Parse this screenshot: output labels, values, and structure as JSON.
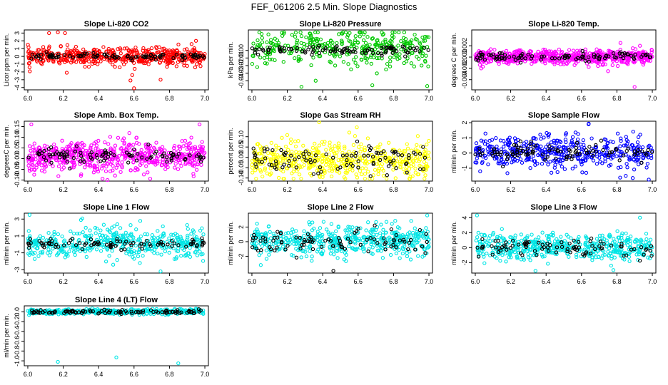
{
  "page_title": "FEF_061206  2.5 Min. Slope Diagnostics",
  "chart_data": [
    {
      "type": "scatter",
      "title": "Slope Li-820 CO2",
      "ylabel": "Licor ppm per min.",
      "xlim": [
        5.98,
        7.02
      ],
      "ylim": [
        -4.3,
        3.4
      ],
      "xticks": [
        "6.0",
        "6.2",
        "6.4",
        "6.6",
        "6.8",
        "7.0"
      ],
      "yticks": [
        -4,
        -3,
        -2,
        -1,
        0,
        1,
        2,
        3
      ],
      "ytick_labels": [
        "-4",
        "-3",
        "-2",
        "-1",
        "0",
        "1",
        "2",
        "3"
      ],
      "series": [
        {
          "color": "#ff0000",
          "n": 500,
          "center": 0.0,
          "spread": 0.55,
          "outliers": [
            [
              6.12,
              3.0
            ],
            [
              6.17,
              3.1
            ],
            [
              6.21,
              3.0
            ],
            [
              6.6,
              -4.1
            ],
            [
              6.58,
              -3.1
            ],
            [
              6.59,
              -2.4
            ],
            [
              6.01,
              -1.4
            ],
            [
              6.22,
              -2.1
            ],
            [
              6.75,
              -3.0
            ],
            [
              6.95,
              2.0
            ]
          ]
        },
        {
          "color": "#000000",
          "n": 100,
          "center": 0.0,
          "spread": 0.18
        }
      ]
    },
    {
      "type": "scatter",
      "title": "Slope Li-820 Pressure",
      "ylabel": "kPa per min.",
      "xlim": [
        5.98,
        7.02
      ],
      "ylim": [
        -0.052,
        0.027
      ],
      "xticks": [
        "6.0",
        "6.2",
        "6.4",
        "6.6",
        "6.8",
        "7.0"
      ],
      "yticks": [
        0.0,
        -0.01,
        -0.02,
        -0.03,
        -0.04
      ],
      "ytick_labels": [
        "0.00",
        "-0.01",
        "-0.02",
        "-0.03",
        "-0.04"
      ],
      "series": [
        {
          "color": "#00c800",
          "n": 350,
          "center": 0.004,
          "spread": 0.012,
          "outliers": [
            [
              6.28,
              -0.048
            ],
            [
              6.68,
              -0.046
            ],
            [
              6.99,
              -0.047
            ],
            [
              6.36,
              -0.04
            ],
            [
              6.56,
              -0.025
            ],
            [
              6.03,
              -0.022
            ]
          ]
        },
        {
          "color": "#000000",
          "n": 100,
          "center": 0.0,
          "spread": 0.003
        }
      ]
    },
    {
      "type": "scatter",
      "title": "Slope Li-820 Temp.",
      "ylabel": "degrees C per min.",
      "xlim": [
        5.98,
        7.02
      ],
      "ylim": [
        -0.0058,
        0.0048
      ],
      "xticks": [
        "6.0",
        "6.2",
        "6.4",
        "6.6",
        "6.8",
        "7.0"
      ],
      "yticks": [
        0.002,
        0.0,
        -0.002,
        -0.004
      ],
      "ytick_labels": [
        "0.002",
        "0.000",
        "-0.002",
        "-0.004"
      ],
      "series": [
        {
          "color": "#ff00ff",
          "n": 600,
          "center": 0.0,
          "spread": 0.0006,
          "outliers": [
            [
              6.9,
              -0.0053
            ],
            [
              6.82,
              0.0025
            ],
            [
              6.93,
              0.002
            ],
            [
              6.75,
              -0.0025
            ]
          ]
        },
        {
          "color": "#000000",
          "n": 100,
          "center": 0.0,
          "spread": 0.0004
        }
      ]
    },
    {
      "type": "scatter",
      "title": "Slope Amb. Box Temp.",
      "ylabel": "degreesC per min.",
      "xlim": [
        5.98,
        7.02
      ],
      "ylim": [
        -0.105,
        0.175
      ],
      "xticks": [
        "6.0",
        "6.2",
        "6.4",
        "6.6",
        "6.8",
        "7.0"
      ],
      "yticks": [
        0.15,
        0.1,
        0.05,
        0.0,
        -0.05,
        -0.1
      ],
      "ytick_labels": [
        "0.15",
        "0.10",
        "0.05",
        "0.00",
        "-0.05",
        "-0.10"
      ],
      "series": [
        {
          "color": "#ff00ff",
          "n": 600,
          "center": 0.01,
          "spread": 0.035,
          "outliers": [
            [
              6.02,
              0.16
            ],
            [
              6.97,
              0.16
            ],
            [
              6.45,
              -0.1
            ],
            [
              6.3,
              -0.08
            ]
          ]
        },
        {
          "color": "#000000",
          "n": 100,
          "center": 0.015,
          "spread": 0.018
        }
      ]
    },
    {
      "type": "scatter",
      "title": "Slope Gas Stream RH",
      "ylabel": "percent per min.",
      "xlim": [
        5.98,
        7.02
      ],
      "ylim": [
        -0.115,
        0.175
      ],
      "xticks": [
        "6.0",
        "6.2",
        "6.4",
        "6.6",
        "6.8",
        "7.0"
      ],
      "yticks": [
        0.1,
        0.05,
        0.0,
        -0.05,
        -0.1
      ],
      "ytick_labels": [
        "0.10",
        "0.05",
        "0.00",
        "-0.05",
        "-0.10"
      ],
      "series": [
        {
          "color": "#ffff00",
          "n": 500,
          "center": -0.015,
          "spread": 0.045,
          "outliers": [
            [
              6.38,
              0.17
            ],
            [
              6.55,
              0.12
            ]
          ]
        },
        {
          "color": "#000000",
          "n": 100,
          "center": -0.01,
          "spread": 0.035
        }
      ]
    },
    {
      "type": "scatter",
      "title": "Slope Sample Flow",
      "ylabel": "ml/min per min.",
      "xlim": [
        5.98,
        7.02
      ],
      "ylim": [
        -1.85,
        2.1
      ],
      "xticks": [
        "6.0",
        "6.2",
        "6.4",
        "6.6",
        "6.8",
        "7.0"
      ],
      "yticks": [
        2,
        1,
        0,
        -1
      ],
      "ytick_labels": [
        "2",
        "1",
        "0",
        "-1"
      ],
      "series": [
        {
          "color": "#0000ff",
          "n": 450,
          "center": 0.05,
          "spread": 0.55,
          "outliers": [
            [
              6.64,
              1.9
            ],
            [
              6.98,
              -1.75
            ],
            [
              6.43,
              -1.3
            ],
            [
              6.85,
              -1.5
            ]
          ]
        },
        {
          "color": "#000000",
          "n": 100,
          "center": 0.05,
          "spread": 0.3
        }
      ]
    },
    {
      "type": "scatter",
      "title": "Slope Line 1 Flow",
      "ylabel": "ml/min per min.",
      "xlim": [
        5.98,
        7.02
      ],
      "ylim": [
        -3.4,
        3.7
      ],
      "xticks": [
        "6.0",
        "6.2",
        "6.4",
        "6.6",
        "6.8",
        "7.0"
      ],
      "yticks": [
        3,
        1,
        -1,
        -3
      ],
      "ytick_labels": [
        "3",
        "1",
        "-1",
        "-3"
      ],
      "series": [
        {
          "color": "#00e5e5",
          "n": 450,
          "center": 0.1,
          "spread": 0.9,
          "outliers": [
            [
              6.01,
              3.5
            ],
            [
              6.3,
              2.9
            ],
            [
              6.75,
              -3.2
            ],
            [
              6.9,
              2.3
            ]
          ]
        },
        {
          "color": "#000000",
          "n": 90,
          "center": 0.05,
          "spread": 0.3
        }
      ]
    },
    {
      "type": "scatter",
      "title": "Slope Line 2 Flow",
      "ylabel": "ml/min per min.",
      "xlim": [
        5.98,
        7.02
      ],
      "ylim": [
        -4.3,
        3.9
      ],
      "xticks": [
        "6.0",
        "6.2",
        "6.4",
        "6.6",
        "6.8",
        "7.0"
      ],
      "yticks": [
        2,
        0,
        -2
      ],
      "ytick_labels": [
        "2",
        "0",
        "-2"
      ],
      "series": [
        {
          "color": "#00e5e5",
          "n": 500,
          "center": 0.1,
          "spread": 1.0,
          "outliers": [
            [
              6.99,
              3.6
            ],
            [
              6.05,
              -3.2
            ]
          ]
        },
        {
          "color": "#000000",
          "n": 90,
          "center": 0.0,
          "spread": 0.9,
          "outliers": [
            [
              6.46,
              -4.0
            ]
          ]
        }
      ]
    },
    {
      "type": "scatter",
      "title": "Slope Line 3 Flow",
      "ylabel": "ml/min per min.",
      "xlim": [
        5.98,
        7.02
      ],
      "ylim": [
        -3.4,
        4.6
      ],
      "xticks": [
        "6.0",
        "6.2",
        "6.4",
        "6.6",
        "6.8",
        "7.0"
      ],
      "yticks": [
        4,
        2,
        0,
        -2
      ],
      "ytick_labels": [
        "4",
        "2",
        "0",
        "-2"
      ],
      "series": [
        {
          "color": "#00e5e5",
          "n": 500,
          "center": 0.1,
          "spread": 0.85,
          "outliers": [
            [
              6.01,
              4.3
            ],
            [
              6.93,
              4.0
            ],
            [
              6.34,
              -3.1
            ],
            [
              6.78,
              -3.0
            ]
          ]
        },
        {
          "color": "#000000",
          "n": 90,
          "center": 0.0,
          "spread": 0.6
        }
      ]
    },
    {
      "type": "scatter",
      "title": "Slope Line 4 (LT) Flow",
      "ylabel": "ml/min per min.",
      "xlim": [
        5.98,
        7.02
      ],
      "ylim": [
        -1.1,
        0.12
      ],
      "xticks": [
        "6.0",
        "6.2",
        "6.4",
        "6.6",
        "6.8",
        "7.0"
      ],
      "yticks": [
        0.0,
        -0.2,
        -0.4,
        -0.6,
        -0.8,
        -1.0
      ],
      "ytick_labels": [
        "0.0",
        "-0.2",
        "-0.4",
        "-0.6",
        "-0.8",
        "-1.0"
      ],
      "series": [
        {
          "color": "#00e5e5",
          "n": 450,
          "center": 0.0,
          "spread": 0.025,
          "outliers": [
            [
              6.17,
              -1.02
            ],
            [
              6.5,
              -0.93
            ],
            [
              6.85,
              -1.05
            ]
          ]
        },
        {
          "color": "#000000",
          "n": 100,
          "center": 0.0,
          "spread": 0.02
        }
      ]
    }
  ]
}
